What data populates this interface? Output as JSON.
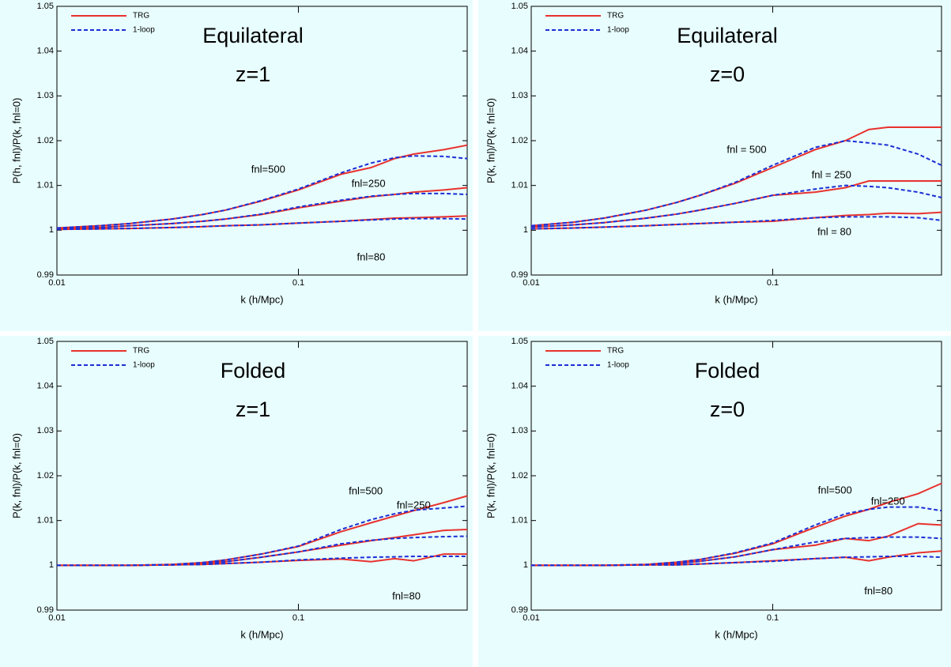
{
  "chart_data": [
    {
      "type": "line",
      "title": "Equilateral",
      "subtitle": "z=1",
      "xlabel": "k (h/Mpc)",
      "ylabel": "P(h, fnl)/P(k, fnl=0)",
      "xscale": "log",
      "legend": "upper left",
      "xlim": [
        0.01,
        0.5
      ],
      "ylim": [
        0.99,
        1.05
      ],
      "xticks": [
        0.01,
        0.1
      ],
      "yticks": [
        0.99,
        1,
        1.01,
        1.02,
        1.03,
        1.04,
        1.05
      ],
      "x": [
        0.01,
        0.015,
        0.02,
        0.03,
        0.04,
        0.05,
        0.07,
        0.1,
        0.15,
        0.2,
        0.25,
        0.3,
        0.4,
        0.5
      ],
      "series": [
        {
          "name": "TRG",
          "color": "#e8322e",
          "dash": false,
          "values": [
            1.0005,
            1.001,
            1.0015,
            1.0025,
            1.0035,
            1.0045,
            1.0065,
            1.009,
            1.0125,
            1.014,
            1.016,
            1.017,
            1.018,
            1.019
          ]
        },
        {
          "name": "1-loop",
          "color": "#1a2fd6",
          "dash": true,
          "values": [
            1.0005,
            1.001,
            1.0015,
            1.0025,
            1.0035,
            1.0045,
            1.0066,
            1.0092,
            1.0128,
            1.015,
            1.0162,
            1.0166,
            1.0165,
            1.016
          ]
        },
        {
          "color": "#e8322e",
          "dash": false,
          "values": [
            1.0003,
            1.0006,
            1.001,
            1.0015,
            1.002,
            1.0025,
            1.0035,
            1.005,
            1.0065,
            1.0075,
            1.008,
            1.0085,
            1.009,
            1.0095
          ]
        },
        {
          "color": "#1a2fd6",
          "dash": true,
          "values": [
            1.0003,
            1.0006,
            1.001,
            1.0015,
            1.002,
            1.0025,
            1.0036,
            1.0052,
            1.0067,
            1.0076,
            1.008,
            1.0082,
            1.0082,
            1.008
          ]
        },
        {
          "color": "#e8322e",
          "dash": false,
          "values": [
            1.0002,
            1.0003,
            1.0004,
            1.0006,
            1.0008,
            1.001,
            1.0012,
            1.0016,
            1.002,
            1.0024,
            1.0027,
            1.0028,
            1.003,
            1.0032
          ]
        },
        {
          "color": "#1a2fd6",
          "dash": true,
          "values": [
            1.0002,
            1.0003,
            1.0004,
            1.0006,
            1.0008,
            1.001,
            1.0012,
            1.0016,
            1.002,
            1.0023,
            1.0025,
            1.0026,
            1.0026,
            1.0025
          ]
        }
      ],
      "annotations": [
        {
          "text": "fnl=500",
          "x": 0.075,
          "y": 1.0135
        },
        {
          "text": "fnl=250",
          "x": 0.195,
          "y": 1.0103
        },
        {
          "text": "fnl=80",
          "x": 0.2,
          "y": 0.9939
        }
      ]
    },
    {
      "type": "line",
      "title": "Equilateral",
      "subtitle": "z=0",
      "xlabel": "k (h/Mpc)",
      "ylabel": "P(k, fnl)/P(k, fnl=0)",
      "xscale": "log",
      "legend": "upper left",
      "xlim": [
        0.01,
        0.5
      ],
      "ylim": [
        0.99,
        1.05
      ],
      "xticks": [
        0.01,
        0.1
      ],
      "yticks": [
        0.99,
        1,
        1.01,
        1.02,
        1.03,
        1.04,
        1.05
      ],
      "x": [
        0.01,
        0.015,
        0.02,
        0.03,
        0.04,
        0.05,
        0.07,
        0.1,
        0.15,
        0.2,
        0.25,
        0.3,
        0.4,
        0.5
      ],
      "series": [
        {
          "name": "TRG",
          "color": "#e8322e",
          "dash": false,
          "values": [
            1.001,
            1.0018,
            1.0027,
            1.0045,
            1.0062,
            1.0078,
            1.0105,
            1.014,
            1.018,
            1.02,
            1.0225,
            1.023,
            1.023,
            1.023
          ]
        },
        {
          "name": "1-loop",
          "color": "#1a2fd6",
          "dash": true,
          "values": [
            1.001,
            1.0018,
            1.0027,
            1.0045,
            1.0062,
            1.0078,
            1.0107,
            1.0145,
            1.0185,
            1.02,
            1.0195,
            1.019,
            1.017,
            1.0145
          ]
        },
        {
          "color": "#e8322e",
          "dash": false,
          "values": [
            1.0007,
            1.0012,
            1.0017,
            1.0027,
            1.0036,
            1.0045,
            1.006,
            1.0078,
            1.0085,
            1.0095,
            1.011,
            1.011,
            1.011,
            1.011
          ]
        },
        {
          "color": "#1a2fd6",
          "dash": true,
          "values": [
            1.0007,
            1.0012,
            1.0017,
            1.0027,
            1.0036,
            1.0045,
            1.006,
            1.0078,
            1.0092,
            1.01,
            1.0098,
            1.0095,
            1.0085,
            1.0073
          ]
        },
        {
          "color": "#e8322e",
          "dash": false,
          "values": [
            1.0003,
            1.0005,
            1.0007,
            1.001,
            1.0013,
            1.0015,
            1.0018,
            1.002,
            1.0028,
            1.0033,
            1.0035,
            1.0038,
            1.0037,
            1.004
          ]
        },
        {
          "color": "#1a2fd6",
          "dash": true,
          "values": [
            1.0003,
            1.0005,
            1.0007,
            1.001,
            1.0013,
            1.0015,
            1.0018,
            1.0022,
            1.0028,
            1.003,
            1.003,
            1.003,
            1.0028,
            1.0022
          ]
        }
      ],
      "annotations": [
        {
          "text": "fnl = 500",
          "x": 0.078,
          "y": 1.0179
        },
        {
          "text": "fnl = 250",
          "x": 0.175,
          "y": 1.0122
        },
        {
          "text": "fnl = 80",
          "x": 0.18,
          "y": 0.9995
        }
      ]
    },
    {
      "type": "line",
      "title": "Folded",
      "subtitle": "z=1",
      "xlabel": "k (h/Mpc)",
      "ylabel": "P(k, fnl)/P(k, fnl=0)",
      "xscale": "log",
      "legend": "upper left",
      "xlim": [
        0.01,
        0.5
      ],
      "ylim": [
        0.99,
        1.05
      ],
      "xticks": [
        0.01,
        0.1
      ],
      "yticks": [
        0.99,
        1,
        1.01,
        1.02,
        1.03,
        1.04,
        1.05
      ],
      "x": [
        0.01,
        0.015,
        0.02,
        0.03,
        0.04,
        0.05,
        0.07,
        0.1,
        0.15,
        0.2,
        0.25,
        0.3,
        0.4,
        0.5
      ],
      "series": [
        {
          "name": "TRG",
          "color": "#e8322e",
          "dash": false,
          "values": [
            1,
            1,
            1,
            1.0002,
            1.0006,
            1.0012,
            1.0025,
            1.0042,
            1.0075,
            1.0095,
            1.011,
            1.0122,
            1.014,
            1.0155
          ]
        },
        {
          "name": "1-loop",
          "color": "#1a2fd6",
          "dash": true,
          "values": [
            1,
            1,
            1,
            1.0002,
            1.0006,
            1.0012,
            1.0025,
            1.0043,
            1.008,
            1.0102,
            1.0115,
            1.0123,
            1.0128,
            1.0132
          ]
        },
        {
          "color": "#e8322e",
          "dash": false,
          "values": [
            1,
            1,
            1,
            1.0001,
            1.0004,
            1.0008,
            1.0018,
            1.003,
            1.0045,
            1.0055,
            1.0062,
            1.0068,
            1.0078,
            1.008
          ]
        },
        {
          "color": "#1a2fd6",
          "dash": true,
          "values": [
            1,
            1,
            1,
            1.0001,
            1.0004,
            1.0008,
            1.0018,
            1.003,
            1.0048,
            1.0056,
            1.006,
            1.0062,
            1.0064,
            1.0065
          ]
        },
        {
          "color": "#e8322e",
          "dash": false,
          "values": [
            1,
            1,
            1,
            1.0001,
            1.0002,
            1.0004,
            1.0007,
            1.0011,
            1.0014,
            1.0008,
            1.0015,
            1.001,
            1.0025,
            1.0025
          ]
        },
        {
          "color": "#1a2fd6",
          "dash": true,
          "values": [
            1,
            1,
            1,
            1.0001,
            1.0002,
            1.0004,
            1.0007,
            1.0012,
            1.0016,
            1.0018,
            1.0019,
            1.002,
            1.002,
            1.002
          ]
        }
      ],
      "annotations": [
        {
          "text": "fnl=500",
          "x": 0.19,
          "y": 1.0165
        },
        {
          "text": "fnl=250",
          "x": 0.3,
          "y": 1.0133
        },
        {
          "text": "fnl=80",
          "x": 0.28,
          "y": 0.993
        }
      ]
    },
    {
      "type": "line",
      "title": "Folded",
      "subtitle": "z=0",
      "xlabel": "k (h/Mpc)",
      "ylabel": "P(k, fnl)/P(k, fnl=0)",
      "xscale": "log",
      "legend": "upper left",
      "xlim": [
        0.01,
        0.5
      ],
      "ylim": [
        0.99,
        1.05
      ],
      "xticks": [
        0.01,
        0.1
      ],
      "yticks": [
        0.99,
        1,
        1.01,
        1.02,
        1.03,
        1.04,
        1.05
      ],
      "x": [
        0.01,
        0.015,
        0.02,
        0.03,
        0.04,
        0.05,
        0.07,
        0.1,
        0.15,
        0.2,
        0.25,
        0.3,
        0.4,
        0.5
      ],
      "series": [
        {
          "name": "TRG",
          "color": "#e8322e",
          "dash": false,
          "values": [
            1,
            1,
            1,
            1.0002,
            1.0007,
            1.0013,
            1.0027,
            1.0048,
            1.0085,
            1.011,
            1.0125,
            1.014,
            1.016,
            1.0183
          ]
        },
        {
          "name": "1-loop",
          "color": "#1a2fd6",
          "dash": true,
          "values": [
            1,
            1,
            1,
            1.0002,
            1.0007,
            1.0013,
            1.0028,
            1.005,
            1.009,
            1.0115,
            1.0125,
            1.013,
            1.013,
            1.0122
          ]
        },
        {
          "color": "#e8322e",
          "dash": false,
          "values": [
            1,
            1,
            1,
            1.0001,
            1.0004,
            1.0009,
            1.0019,
            1.0035,
            1.0045,
            1.006,
            1.0055,
            1.0065,
            1.0093,
            1.009
          ]
        },
        {
          "color": "#1a2fd6",
          "dash": true,
          "values": [
            1,
            1,
            1,
            1.0001,
            1.0004,
            1.0009,
            1.0019,
            1.0035,
            1.0052,
            1.006,
            1.0062,
            1.0063,
            1.0063,
            1.006
          ]
        },
        {
          "color": "#e8322e",
          "dash": false,
          "values": [
            1,
            1,
            1,
            1.0001,
            1.0001,
            1.0003,
            1.0006,
            1.001,
            1.0015,
            1.0018,
            1.001,
            1.0018,
            1.0028,
            1.0032
          ]
        },
        {
          "color": "#1a2fd6",
          "dash": true,
          "values": [
            1,
            1,
            1,
            1.0001,
            1.0001,
            1.0003,
            1.0006,
            1.0009,
            1.0015,
            1.0018,
            1.0019,
            1.002,
            1.002,
            1.0018
          ]
        }
      ],
      "annotations": [
        {
          "text": "fnl=500",
          "x": 0.181,
          "y": 1.0166
        },
        {
          "text": "fnl=250",
          "x": 0.3,
          "y": 1.0142
        },
        {
          "text": "fnl=80",
          "x": 0.274,
          "y": 0.9941
        }
      ]
    }
  ]
}
